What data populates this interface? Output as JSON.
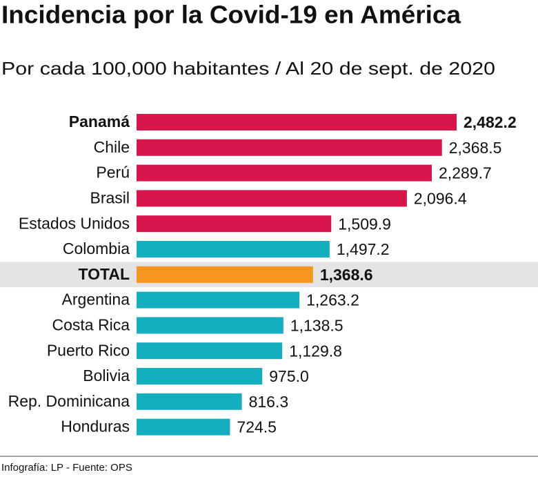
{
  "chart_data": {
    "type": "bar",
    "orientation": "horizontal",
    "title": "Incidencia por la Covid-19 en América",
    "subtitle": "Por cada 100,000 habitantes / Al 20 de sept. de 2020",
    "categories": [
      "Panamá",
      "Chile",
      "Perú",
      "Brasil",
      "Estados Unidos",
      "Colombia",
      "TOTAL",
      "Argentina",
      "Costa Rica",
      "Puerto Rico",
      "Bolivia",
      "Rep. Dominicana",
      "Honduras"
    ],
    "values": [
      2482.2,
      2368.5,
      2289.7,
      2096.4,
      1509.9,
      1497.2,
      1368.6,
      1263.2,
      1138.5,
      1129.8,
      975.0,
      816.3,
      724.5
    ],
    "value_labels": [
      "2,482.2",
      "2,368.5",
      "2,289.7",
      "2,096.4",
      "1,509.9",
      "1,497.2",
      "1,368.6",
      "1,263.2",
      "1,138.5",
      "1,129.8",
      "975.0",
      "816.3",
      "724.5"
    ],
    "colors": [
      "#d8164c",
      "#d8164c",
      "#d8164c",
      "#d8164c",
      "#d8164c",
      "#14aec0",
      "#f5961f",
      "#14aec0",
      "#14aec0",
      "#14aec0",
      "#14aec0",
      "#14aec0",
      "#14aec0"
    ],
    "source": "Infografía: LP - Fuente: OPS"
  }
}
